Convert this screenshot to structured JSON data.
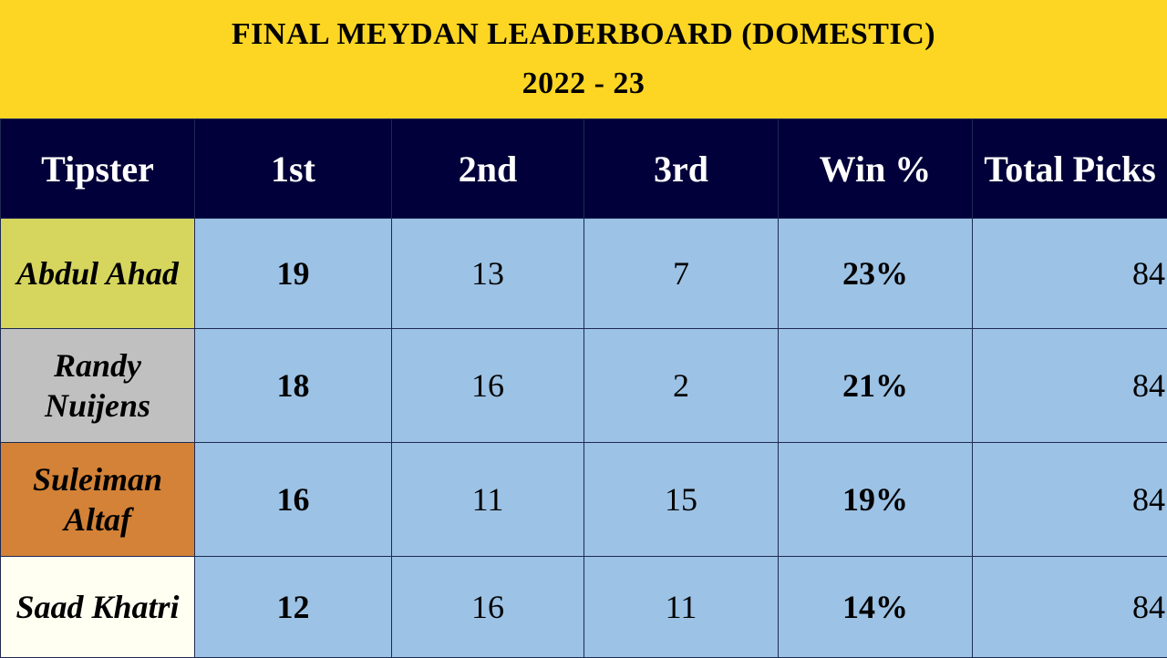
{
  "title": {
    "line1": "FINAL MEYDAN LEADERBOARD (DOMESTIC)",
    "line2": "2022 - 23"
  },
  "columns": [
    "Tipster",
    "1st",
    "2nd",
    "3rd",
    "Win %",
    "Total Picks"
  ],
  "rows": [
    {
      "tipster": "Abdul Ahad",
      "first": "19",
      "second": "13",
      "third": "7",
      "win_pct": "23%",
      "total_picks": "84",
      "name_bg": "#d6d65e"
    },
    {
      "tipster": "Randy Nuijens",
      "first": "18",
      "second": "16",
      "third": "2",
      "win_pct": "21%",
      "total_picks": "84",
      "name_bg": "#c0c0c0"
    },
    {
      "tipster": "Suleiman Altaf",
      "first": "16",
      "second": "11",
      "third": "15",
      "win_pct": "19%",
      "total_picks": "84",
      "name_bg": "#d38237"
    },
    {
      "tipster": "Saad Khatri",
      "first": "12",
      "second": "16",
      "third": "11",
      "win_pct": "14%",
      "total_picks": "84",
      "name_bg": "#fffff2"
    }
  ],
  "colors": {
    "title_band": "#fdd623",
    "header_bg": "#01003a",
    "cell_bg": "#9cc2e5"
  }
}
